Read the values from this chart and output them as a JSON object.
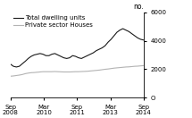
{
  "title": "",
  "ylabel": "no.",
  "ylim": [
    0,
    6000
  ],
  "yticks": [
    0,
    2000,
    4000,
    6000
  ],
  "ytick_labels": [
    "O",
    "2000",
    "4000",
    "6000"
  ],
  "xtick_labels": [
    "Sep\n2008",
    "Mar\n2010",
    "Sep\n2011",
    "Mar\n2013",
    "Sep\n2014"
  ],
  "xtick_positions": [
    0,
    6,
    12,
    18,
    24
  ],
  "legend": [
    "Total dwelling units",
    "Private sector Houses"
  ],
  "line_colors": [
    "#1a1a1a",
    "#b3b3b3"
  ],
  "background_color": "#ffffff",
  "total_dwelling": [
    2350,
    2200,
    2150,
    2200,
    2380,
    2550,
    2750,
    2900,
    3000,
    3050,
    3100,
    3050,
    2950,
    2950,
    3050,
    3100,
    3000,
    2900,
    2800,
    2750,
    2800,
    2950,
    2900,
    2800,
    2750,
    2850,
    2950,
    3050,
    3150,
    3300,
    3400,
    3500,
    3650,
    3900,
    4100,
    4350,
    4600,
    4750,
    4850,
    4750,
    4650,
    4500,
    4350,
    4200,
    4100,
    4050
  ],
  "private_houses": [
    1500,
    1520,
    1550,
    1580,
    1620,
    1680,
    1720,
    1750,
    1760,
    1780,
    1800,
    1820,
    1820,
    1820,
    1820,
    1830,
    1820,
    1810,
    1800,
    1800,
    1800,
    1810,
    1820,
    1820,
    1830,
    1840,
    1850,
    1870,
    1890,
    1910,
    1930,
    1960,
    1990,
    2010,
    2040,
    2070,
    2090,
    2110,
    2130,
    2150,
    2160,
    2180,
    2200,
    2210,
    2230,
    2250
  ],
  "n_points": 46,
  "x_max": 24
}
